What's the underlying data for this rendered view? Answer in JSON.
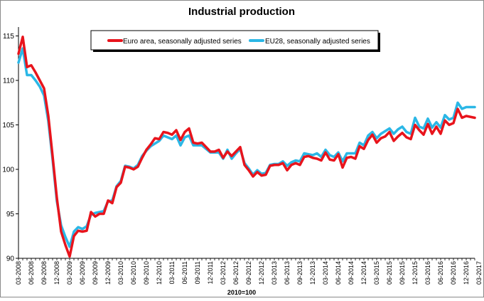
{
  "chart_data": {
    "type": "line",
    "title": "Industrial production",
    "xlabel": "2010=100",
    "ylabel": "",
    "ylim": [
      90,
      116
    ],
    "yticks": [
      90,
      95,
      100,
      105,
      110,
      115
    ],
    "grid": false,
    "legend_position": "top-center",
    "start_month": "03-2008",
    "x_tick_labels": [
      "03-2008",
      "06-2008",
      "09-2008",
      "12-2008",
      "03-2009",
      "06-2009",
      "09-2009",
      "12-2009",
      "03-2010",
      "06-2010",
      "09-2010",
      "12-2010",
      "03-2011",
      "06-2011",
      "09-2011",
      "12-2011",
      "03-2012",
      "06-2012",
      "09-2012",
      "12-2012",
      "03-2013",
      "06-2013",
      "09-2013",
      "12-2013",
      "03-2014",
      "06-2014",
      "09-2014",
      "12-2014",
      "03-2015",
      "06-2015",
      "09-2015",
      "12-2015",
      "03-2016",
      "06-2016",
      "09-2016",
      "12-2016",
      "03-2017"
    ],
    "series": [
      {
        "name": "Euro area, seasonally adjusted series",
        "color": "#e8141c",
        "values": [
          113.0,
          114.9,
          111.5,
          111.7,
          110.9,
          110.0,
          109.1,
          106.0,
          101.5,
          96.8,
          93.0,
          91.5,
          90.2,
          92.5,
          93.1,
          93.0,
          93.1,
          95.2,
          94.7,
          95.0,
          95.0,
          96.5,
          96.2,
          98.0,
          98.5,
          100.3,
          100.2,
          100.0,
          100.3,
          101.3,
          102.2,
          102.8,
          103.5,
          103.4,
          104.2,
          104.1,
          103.9,
          104.4,
          103.3,
          104.2,
          104.6,
          103.0,
          102.9,
          103.0,
          102.5,
          102.0,
          102.0,
          102.2,
          101.3,
          102.0,
          101.5,
          102.0,
          102.5,
          100.5,
          99.9,
          99.2,
          99.7,
          99.3,
          99.4,
          100.4,
          100.5,
          100.5,
          100.7,
          99.9,
          100.5,
          100.7,
          100.5,
          101.4,
          101.5,
          101.3,
          101.2,
          101.0,
          101.9,
          101.1,
          101.0,
          101.7,
          100.2,
          101.3,
          101.4,
          101.2,
          102.6,
          102.3,
          103.3,
          103.9,
          103.0,
          103.5,
          103.7,
          104.2,
          103.2,
          103.7,
          104.1,
          103.6,
          103.4,
          105.0,
          104.4,
          103.9,
          105.1,
          104.0,
          104.8,
          104.0,
          105.5,
          105.0,
          105.2,
          106.8,
          105.8,
          106.0,
          105.9,
          105.8
        ]
      },
      {
        "name": "EU28, seasonally adjusted series",
        "color": "#2bb7e6",
        "values": [
          112.0,
          113.6,
          110.6,
          110.6,
          110.0,
          109.3,
          108.3,
          105.4,
          101.1,
          96.4,
          93.7,
          92.4,
          91.3,
          93.0,
          93.5,
          93.3,
          93.6,
          94.9,
          95.1,
          95.2,
          95.3,
          96.4,
          96.5,
          98.1,
          98.7,
          100.4,
          100.3,
          100.1,
          100.5,
          101.5,
          102.1,
          102.6,
          102.9,
          103.2,
          103.8,
          103.6,
          103.4,
          103.8,
          102.7,
          103.6,
          103.8,
          102.7,
          102.7,
          102.7,
          102.3,
          101.9,
          101.9,
          101.9,
          101.2,
          102.2,
          101.2,
          101.8,
          102.3,
          100.7,
          100.1,
          99.4,
          99.9,
          99.5,
          99.6,
          100.5,
          100.6,
          100.6,
          100.9,
          100.4,
          100.8,
          101.0,
          100.9,
          101.8,
          101.7,
          101.6,
          101.8,
          101.4,
          102.2,
          101.6,
          101.4,
          101.9,
          100.9,
          101.8,
          101.8,
          101.8,
          103.0,
          102.7,
          103.8,
          104.2,
          103.5,
          104.0,
          104.3,
          104.6,
          104.0,
          104.5,
          104.8,
          104.2,
          104.0,
          105.8,
          104.8,
          104.6,
          105.7,
          104.7,
          105.3,
          104.7,
          106.1,
          105.6,
          105.8,
          107.5,
          106.8,
          107.0,
          107.0,
          107.0
        ]
      }
    ]
  }
}
